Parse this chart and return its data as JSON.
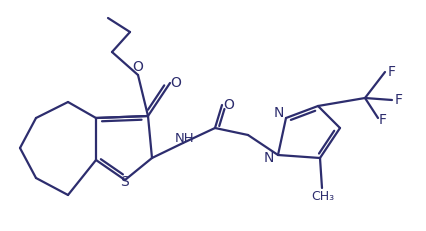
{
  "background_color": "#ffffff",
  "line_color": "#2d2d6e",
  "line_width": 1.6,
  "figsize": [
    4.27,
    2.31
  ],
  "dpi": 100,
  "atoms": {
    "S_label": "S",
    "N1_label": "N",
    "N2_label": "N",
    "NH_label": "NH",
    "O1_label": "O",
    "O2_label": "O",
    "F1_label": "F",
    "F2_label": "F",
    "F3_label": "F",
    "CH3_label": "CH₃"
  }
}
